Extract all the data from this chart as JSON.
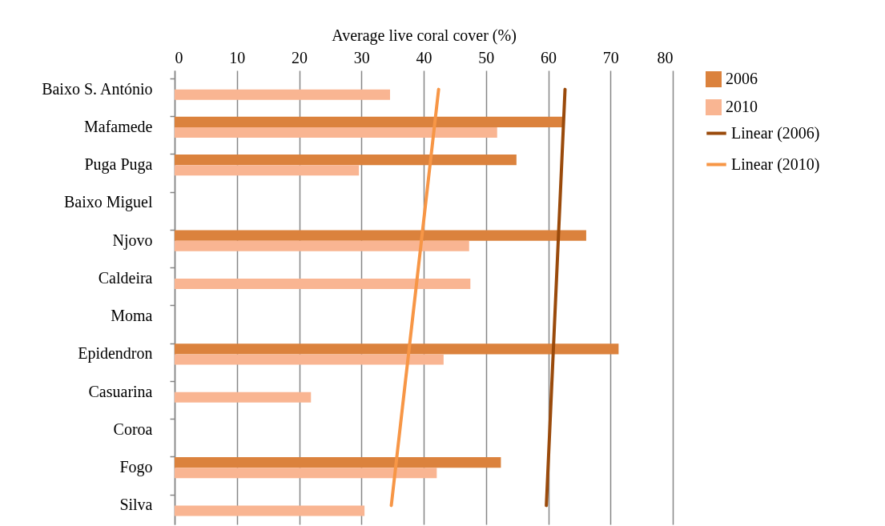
{
  "chart_data": {
    "type": "bar",
    "orientation": "horizontal",
    "xlabel": "Average live coral cover (%)",
    "categories": [
      "Baixo S. António",
      "Mafamede",
      "Puga Puga",
      "Baixo Miguel",
      "Njovo",
      "Caldeira",
      "Moma",
      "Epidendron",
      "Casuarina",
      "Coroa",
      "Fogo",
      "Silva"
    ],
    "series": [
      {
        "name": "2006",
        "color": "#db823d",
        "values": [
          null,
          62.3,
          54.9,
          null,
          66.1,
          null,
          null,
          71.3,
          null,
          null,
          52.4,
          null
        ]
      },
      {
        "name": "2010",
        "color": "#f9b592",
        "values": [
          34.6,
          51.8,
          29.6,
          null,
          47.3,
          47.5,
          null,
          43.2,
          21.9,
          null,
          42.1,
          30.5
        ]
      },
      {
        "name": "Linear (2006)",
        "type": "line",
        "color": "#9a4a0b",
        "x": [
          "Baixo S. António",
          "Silva"
        ],
        "values": [
          62.7,
          59.7
        ]
      },
      {
        "name": "Linear (2010)",
        "type": "line",
        "color": "#f79646",
        "x": [
          "Baixo S. António",
          "Silva"
        ],
        "values": [
          42.4,
          34.8
        ]
      }
    ],
    "xlim": [
      0,
      80
    ],
    "xticks": [
      0,
      10,
      20,
      30,
      40,
      50,
      60,
      70,
      80
    ],
    "grid": "x",
    "legend": "right"
  }
}
